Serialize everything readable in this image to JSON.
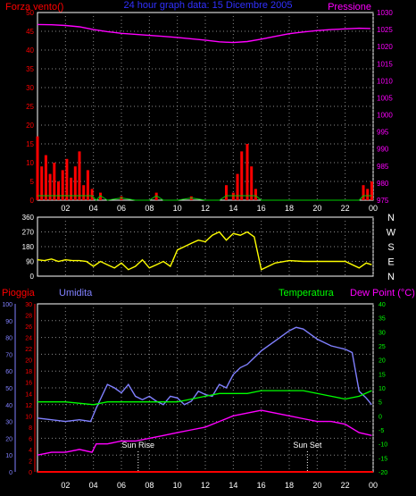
{
  "colors": {
    "background": "#000000",
    "frame": "#ffffff",
    "grid": "#8a8a8a",
    "wind": "#ff0000",
    "wind_low": "#00cc00",
    "pressure": "#ff00ff",
    "direction": "#ffff00",
    "rain": "#ff0000",
    "humidity": "#8080ff",
    "temperature": "#00ff00",
    "dewpoint": "#ff00ff",
    "title": "#3030ff",
    "white_text": "#ffffff"
  },
  "chart_data": [
    {
      "type": "line",
      "panel": "top",
      "title": "24 hour graph data: 15 Dicembre 2005",
      "left_label": "Forza vento()",
      "right_label": "Pressione",
      "y_left": {
        "min": 0,
        "max": 50,
        "ticks": [
          "0",
          "5",
          "10",
          "15",
          "20",
          "25",
          "30",
          "35",
          "40",
          "45",
          "50"
        ]
      },
      "y_right": {
        "min": 975,
        "max": 1030,
        "ticks": [
          "975",
          "980",
          "985",
          "990",
          "995",
          "1000",
          "1005",
          "1010",
          "1015",
          "1020",
          "1025",
          "1030"
        ]
      },
      "x_ticks": [
        "02",
        "04",
        "06",
        "08",
        "10",
        "12",
        "14",
        "16",
        "18",
        "20",
        "22",
        "00"
      ],
      "x_range": [
        0,
        24
      ],
      "series": [
        {
          "name": "Pressione",
          "axis": "right",
          "x": [
            0,
            1,
            2,
            3,
            4,
            5,
            6,
            7,
            8,
            9,
            10,
            11,
            12,
            13,
            14,
            15,
            16,
            17,
            18,
            19,
            20,
            21,
            22,
            23,
            23.8
          ],
          "values": [
            1026.5,
            1026.4,
            1026.2,
            1025.8,
            1025,
            1024.4,
            1023.9,
            1023.6,
            1023.3,
            1023,
            1022.7,
            1022.3,
            1021.9,
            1021.4,
            1021.2,
            1021.5,
            1022.2,
            1023,
            1023.8,
            1024.3,
            1024.7,
            1025,
            1025.2,
            1025.4,
            1025.3
          ]
        },
        {
          "name": "Forza vento",
          "axis": "left",
          "x": [
            0,
            0.3,
            0.6,
            0.9,
            1.2,
            1.5,
            1.8,
            2.1,
            2.4,
            2.7,
            3,
            3.3,
            3.6,
            3.9,
            4.2,
            4.5,
            5,
            6,
            7,
            8,
            8.5,
            9,
            10,
            11,
            12,
            13,
            13.5,
            14,
            14.3,
            14.6,
            15,
            15.3,
            15.6,
            16,
            17,
            18,
            19,
            20,
            21,
            22,
            23,
            23.3,
            23.6,
            23.9
          ],
          "values": [
            17,
            9,
            12,
            7,
            10,
            5,
            8,
            11,
            6,
            9,
            13,
            4,
            8,
            3,
            0,
            2,
            0,
            1,
            0,
            0,
            2,
            0,
            0,
            1,
            0,
            0,
            4,
            2,
            7,
            13,
            15,
            9,
            3,
            0,
            0,
            0,
            0,
            0,
            0,
            0,
            0,
            4,
            3,
            5
          ]
        }
      ]
    },
    {
      "type": "line",
      "panel": "middle",
      "y_left": {
        "min": 0,
        "max": 360,
        "ticks": [
          "0",
          "90",
          "180",
          "270",
          "360"
        ]
      },
      "right_labels": [
        "N",
        "W",
        "S",
        "E",
        "N"
      ],
      "series": [
        {
          "name": "direction",
          "x": [
            0,
            0.5,
            1,
            1.5,
            2,
            2.5,
            3,
            3.5,
            4,
            4.5,
            5,
            5.5,
            6,
            6.5,
            7,
            7.5,
            8,
            8.5,
            9,
            9.5,
            10,
            10.5,
            11,
            11.5,
            12,
            12.5,
            13,
            13.5,
            14,
            14.5,
            15,
            15.5,
            16,
            16.5,
            17,
            18,
            19,
            20,
            21,
            22,
            23,
            23.5,
            23.9
          ],
          "values": [
            100,
            95,
            105,
            90,
            100,
            95,
            95,
            90,
            60,
            90,
            70,
            50,
            80,
            40,
            60,
            100,
            50,
            70,
            90,
            60,
            160,
            180,
            200,
            220,
            210,
            250,
            270,
            220,
            260,
            250,
            270,
            240,
            40,
            60,
            80,
            95,
            90,
            90,
            90,
            90,
            50,
            80,
            70
          ]
        }
      ]
    },
    {
      "type": "line",
      "panel": "bottom",
      "labels": {
        "rain": "Pioggia",
        "humidity": "Umidita",
        "temperature": "Temperatura",
        "dewpoint": "Dew Point (°C)"
      },
      "y_humidity": {
        "min": 0,
        "max": 100,
        "ticks": [
          "0",
          "10",
          "20",
          "30",
          "40",
          "50",
          "60",
          "70",
          "80",
          "90",
          "100"
        ]
      },
      "y_rain": {
        "min": 0,
        "max": 30,
        "ticks": [
          "0",
          "2",
          "4",
          "6",
          "8",
          "10",
          "12",
          "14",
          "16",
          "18",
          "20",
          "22",
          "24",
          "26",
          "28",
          "30"
        ]
      },
      "y_temp": {
        "min": -20,
        "max": 40,
        "ticks": [
          "-20",
          "-15",
          "-10",
          "-5",
          "0",
          "5",
          "10",
          "15",
          "20",
          "25",
          "30",
          "35",
          "40"
        ]
      },
      "x_ticks": [
        "02",
        "04",
        "06",
        "08",
        "10",
        "12",
        "14",
        "16",
        "18",
        "20",
        "22",
        "00"
      ],
      "annotations": [
        {
          "label": "Sun Rise",
          "x": 7.2
        },
        {
          "label": "Sun Set",
          "x": 19.3
        }
      ],
      "series": [
        {
          "name": "Umidita",
          "axis": "humidity",
          "x": [
            0,
            1,
            2,
            3,
            3.8,
            4.2,
            5,
            5.5,
            6,
            6.5,
            7,
            7.5,
            8,
            8.5,
            9,
            9.5,
            10,
            10.5,
            11,
            11.5,
            12,
            12.5,
            13,
            13.5,
            14,
            14.5,
            15,
            16,
            17,
            18,
            18.5,
            19,
            19.5,
            20,
            21,
            22,
            22.5,
            23,
            23.5,
            23.9
          ],
          "values": [
            32,
            31,
            30,
            31,
            30,
            38,
            52,
            50,
            47,
            52,
            45,
            43,
            45,
            42,
            40,
            45,
            44,
            40,
            42,
            48,
            46,
            45,
            52,
            50,
            58,
            62,
            64,
            72,
            78,
            84,
            86,
            85,
            82,
            79,
            75,
            73,
            71,
            48,
            44,
            40
          ]
        },
        {
          "name": "Temperatura",
          "axis": "temp",
          "x": [
            0,
            2,
            4,
            5,
            6,
            8,
            10,
            12,
            13,
            14,
            15,
            16,
            17,
            18,
            19,
            20,
            21,
            22,
            23,
            23.9
          ],
          "values": [
            5,
            5,
            4,
            5,
            5,
            5,
            5,
            7,
            8,
            8,
            8,
            9,
            9,
            9,
            9,
            8,
            7,
            6,
            7,
            9
          ]
        },
        {
          "name": "Dew Point",
          "axis": "temp",
          "x": [
            0,
            1,
            2,
            3,
            3.9,
            4.2,
            5,
            6,
            7,
            8,
            9,
            10,
            11,
            12,
            13,
            14,
            15,
            16,
            17,
            18,
            19,
            20,
            21,
            22,
            23,
            23.9
          ],
          "values": [
            -14,
            -13,
            -13,
            -12,
            -13,
            -10,
            -10,
            -9,
            -9,
            -8,
            -7,
            -6,
            -5,
            -4,
            -2,
            0,
            1,
            2,
            1,
            0,
            -1,
            -2,
            -2,
            -3,
            -6,
            -7
          ]
        },
        {
          "name": "Pioggia",
          "axis": "rain",
          "x": [
            0,
            24
          ],
          "values": [
            0,
            0
          ]
        }
      ]
    }
  ]
}
